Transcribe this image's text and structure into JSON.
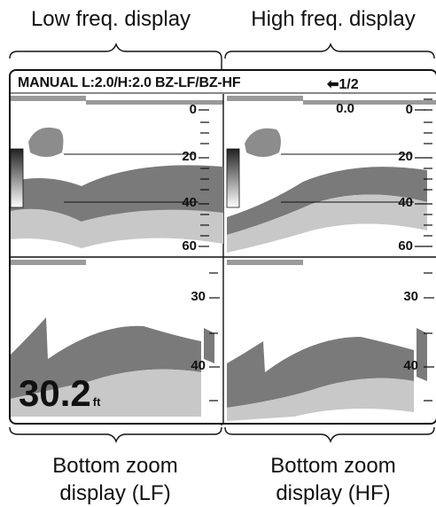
{
  "captions": {
    "top_left": "Low freq. display",
    "top_right": "High freq. display",
    "bottom_left": [
      "Bottom zoom",
      "display (LF)"
    ],
    "bottom_right": [
      "Bottom zoom",
      "display (HF)"
    ]
  },
  "header": {
    "mode": "MANUAL L:2.0/H:2.0 BZ-LF/BZ-HF",
    "page": "1/2",
    "page_icon": "left-arrow-icon"
  },
  "lf_scale": [
    "0",
    "20",
    "40",
    "60"
  ],
  "hf_scale": [
    "0",
    "20",
    "40",
    "60"
  ],
  "hf_draft": "0.0",
  "zoom_scale_lf": [
    "30",
    "40"
  ],
  "zoom_scale_hf": [
    "30",
    "40"
  ],
  "depth": {
    "value": "30.2",
    "unit": "ft"
  },
  "colors": {
    "echo_dark": "#6e6e6e",
    "echo_light": "#c4c4c4",
    "frame": "#111111"
  }
}
